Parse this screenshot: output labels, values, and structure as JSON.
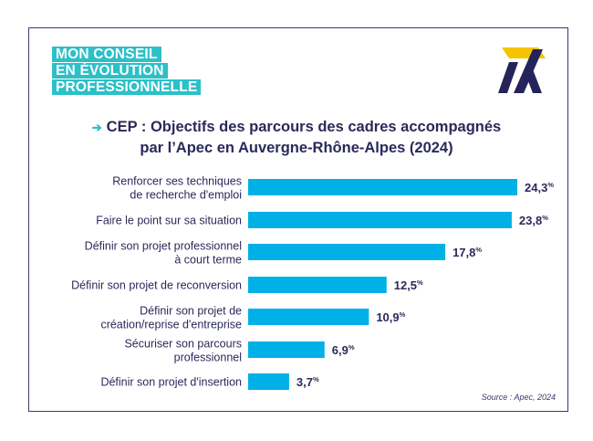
{
  "logo": {
    "lines": [
      "MON CONSEIL",
      "EN ÉVOLUTION",
      "PROFESSIONNELLE"
    ]
  },
  "brand_icon": "apec-a-logo",
  "title": {
    "line1": "CEP : Objectifs des parcours des cadres accompagnés",
    "line2": "par l’Apec en Auvergne-Rhône-Alpes (2024)"
  },
  "source": "Source : Apec, 2024",
  "colors": {
    "bar": "#00b0e6",
    "accent": "#2cc0c8",
    "text": "#2a2a5a",
    "brand_yellow": "#f5c400",
    "brand_navy": "#25245a"
  },
  "chart_data": {
    "type": "bar",
    "orientation": "horizontal",
    "categories": [
      [
        "Renforcer ses techniques",
        "de recherche d'emploi"
      ],
      [
        "Faire le point sur sa situation"
      ],
      [
        "Définir son projet professionnel",
        "à court terme"
      ],
      [
        "Définir son projet de reconversion"
      ],
      [
        "Définir son projet de",
        "création/reprise d'entreprise"
      ],
      [
        "Sécuriser son parcours",
        "professionnel"
      ],
      [
        "Définir son projet d'insertion"
      ]
    ],
    "values": [
      24.3,
      23.8,
      17.8,
      12.5,
      10.9,
      6.9,
      3.7
    ],
    "value_labels": [
      "24,3",
      "23,8",
      "17,8",
      "12,5",
      "10,9",
      "6,9",
      "3,7"
    ],
    "unit": "%",
    "xlim": [
      0,
      24.3
    ],
    "grid": false,
    "legend": "none"
  }
}
